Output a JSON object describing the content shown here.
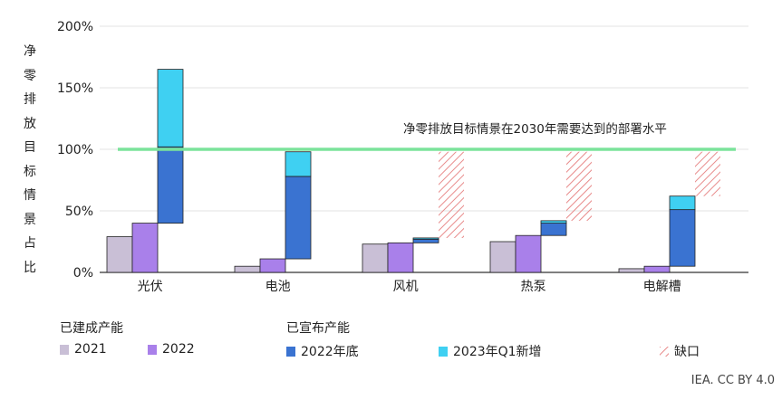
{
  "chart_data": {
    "type": "bar",
    "ylabel": "净零排放目标情景占比",
    "yticks": [
      "0%",
      "50%",
      "100%",
      "150%",
      "200%"
    ],
    "ylim": [
      0,
      200
    ],
    "categories": [
      "光伏",
      "电池",
      "风机",
      "热泵",
      "电解槽"
    ],
    "target_line": {
      "value": 100,
      "label": "净零排放目标情景在2030年需要达到的部署水平",
      "color": "#7be39b"
    },
    "series": [
      {
        "name": "2021",
        "color": "#c9bfd6",
        "values": [
          29,
          5,
          23,
          25,
          3
        ]
      },
      {
        "name": "2022",
        "color": "#a980ea",
        "values": [
          40,
          11,
          24,
          30,
          5
        ]
      },
      {
        "name": "2022年底",
        "color": "#3a73d1",
        "values": [
          [
            40,
            102
          ],
          [
            11,
            78
          ],
          [
            24,
            27
          ],
          [
            30,
            40
          ],
          [
            5,
            51
          ]
        ]
      },
      {
        "name": "2023年Q1新增",
        "color": "#3fd0f2",
        "values": [
          [
            102,
            165
          ],
          [
            78,
            98
          ],
          [
            27,
            28
          ],
          [
            40,
            42
          ],
          [
            51,
            62
          ]
        ]
      },
      {
        "name": "缺口",
        "color": "#e88a8a",
        "values": [
          null,
          null,
          [
            28,
            98
          ],
          [
            42,
            98
          ],
          [
            62,
            98
          ]
        ]
      }
    ],
    "legend": {
      "group1_title": "已建成产能",
      "group2_title": "已宣布产能"
    },
    "grid": true
  },
  "credit": "IEA. CC BY 4.0"
}
